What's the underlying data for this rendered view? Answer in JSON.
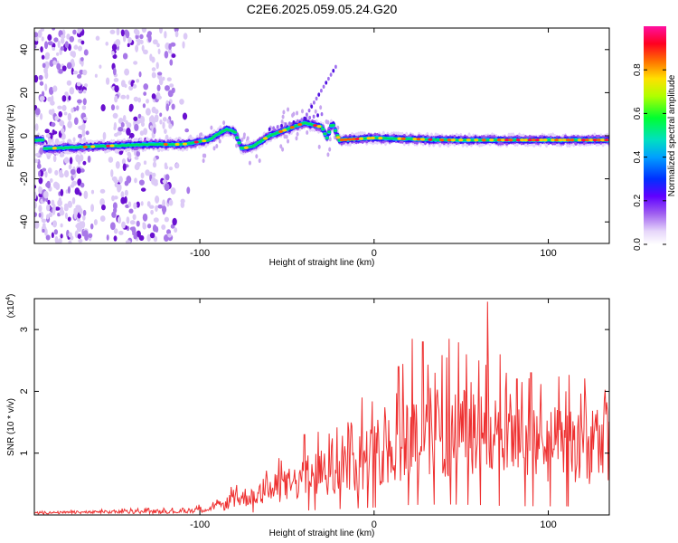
{
  "title": "C2E6.2025.059.05.24.G20",
  "chart_data": [
    {
      "type": "heatmap",
      "xlabel": "Height of straight line (km)",
      "ylabel": "Frequency (Hz)",
      "xlim": [
        -195,
        135
      ],
      "ylim": [
        -50,
        50
      ],
      "xticks": [
        -100,
        0,
        100
      ],
      "yticks": [
        -40,
        -20,
        0,
        20,
        40
      ],
      "colorbar": {
        "label": "Normalized spectral amplitude",
        "range": [
          0,
          1
        ],
        "ticks": [
          "0.0",
          "0.2",
          "0.4",
          "0.6",
          "0.8"
        ],
        "colors": [
          "#ffffff",
          "#d7c0f5",
          "#8a2be2",
          "#0000ff",
          "#00c8ff",
          "#00ff00",
          "#ffff00",
          "#ff8000",
          "#ff0000",
          "#ff1493"
        ]
      },
      "ridge": [
        {
          "x": -190,
          "f": -6
        },
        {
          "x": -160,
          "f": -5
        },
        {
          "x": -130,
          "f": -4
        },
        {
          "x": -110,
          "f": -4
        },
        {
          "x": -95,
          "f": -2
        },
        {
          "x": -85,
          "f": 3
        },
        {
          "x": -80,
          "f": 2
        },
        {
          "x": -76,
          "f": -6
        },
        {
          "x": -70,
          "f": -5
        },
        {
          "x": -60,
          "f": 0
        },
        {
          "x": -50,
          "f": 3
        },
        {
          "x": -40,
          "f": 6
        },
        {
          "x": -30,
          "f": 4
        },
        {
          "x": -27,
          "f": -1
        },
        {
          "x": -24,
          "f": 6
        },
        {
          "x": -20,
          "f": -2
        },
        {
          "x": 0,
          "f": -1
        },
        {
          "x": 40,
          "f": -2
        },
        {
          "x": 80,
          "f": -2
        },
        {
          "x": 135,
          "f": -2
        }
      ]
    },
    {
      "type": "line",
      "xlabel": "Height of straight line (km)",
      "ylabel": "SNR (10 * v/v)",
      "yscale_note": "(x10",
      "yscale_exp": "4",
      "xlim": [
        -195,
        135
      ],
      "ylim": [
        0,
        3.5
      ],
      "xticks": [
        -100,
        0,
        100
      ],
      "yticks": [
        1,
        2,
        3
      ],
      "color": "#ee3030",
      "envelope": [
        {
          "x": -195,
          "v": 0.04
        },
        {
          "x": -150,
          "v": 0.06
        },
        {
          "x": -110,
          "v": 0.07
        },
        {
          "x": -90,
          "v": 0.15
        },
        {
          "x": -80,
          "v": 0.3
        },
        {
          "x": -60,
          "v": 0.5
        },
        {
          "x": -40,
          "v": 0.7
        },
        {
          "x": -20,
          "v": 0.95
        },
        {
          "x": 0,
          "v": 1.2
        },
        {
          "x": 20,
          "v": 1.6
        },
        {
          "x": 40,
          "v": 1.7
        },
        {
          "x": 60,
          "v": 1.6
        },
        {
          "x": 80,
          "v": 1.4
        },
        {
          "x": 100,
          "v": 1.4
        },
        {
          "x": 135,
          "v": 1.35
        }
      ],
      "peaks": [
        {
          "x": -83,
          "v": 0.32
        },
        {
          "x": -55,
          "v": 0.6
        },
        {
          "x": -40,
          "v": 1.3
        },
        {
          "x": -15,
          "v": 1.5
        },
        {
          "x": -7,
          "v": 1.9
        },
        {
          "x": 14,
          "v": 2.4
        },
        {
          "x": 22,
          "v": 2.85
        },
        {
          "x": 28,
          "v": 2.8
        },
        {
          "x": 35,
          "v": 2.3
        },
        {
          "x": 43,
          "v": 2.85
        },
        {
          "x": 53,
          "v": 2.6
        },
        {
          "x": 60,
          "v": 2.5
        },
        {
          "x": 65,
          "v": 3.45
        },
        {
          "x": 72,
          "v": 2.6
        },
        {
          "x": 82,
          "v": 2.2
        },
        {
          "x": 90,
          "v": 2.3
        },
        {
          "x": 110,
          "v": 2.0
        },
        {
          "x": 128,
          "v": 1.7
        }
      ]
    }
  ]
}
